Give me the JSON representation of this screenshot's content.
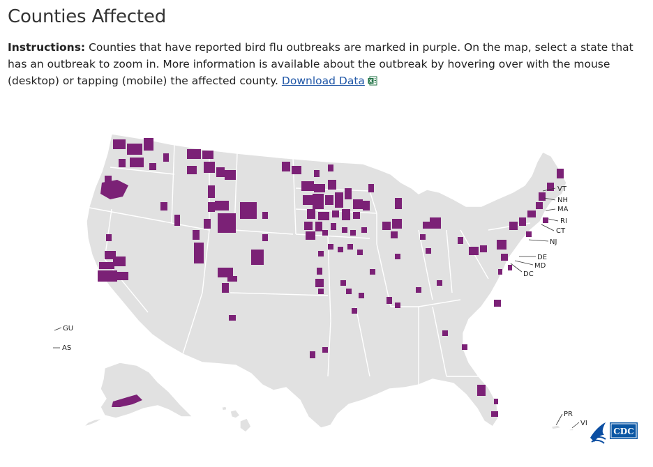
{
  "header": {
    "title": "Counties Affected"
  },
  "instructions": {
    "label": "Instructions:",
    "text": " Counties that have reported bird flu outbreaks are marked in purple. On the map, select a state that has an outbreak to zoom in. More information is available about the outbreak by hovering over with the mouse (desktop) or tapping (mobile) the affected county. ",
    "download_label": "Download Data"
  },
  "map": {
    "colors": {
      "affected": "#7b2176",
      "unaffected": "#e1e1e1",
      "border": "#ffffff"
    },
    "small_state_labels": [
      "VT",
      "NH",
      "MA",
      "RI",
      "CT",
      "NJ",
      "DE",
      "MD",
      "DC"
    ],
    "territory_labels": [
      "GU",
      "AS",
      "PR",
      "VI"
    ],
    "logo": {
      "text": "CDC",
      "icon": "hhs-eagle-icon"
    }
  }
}
